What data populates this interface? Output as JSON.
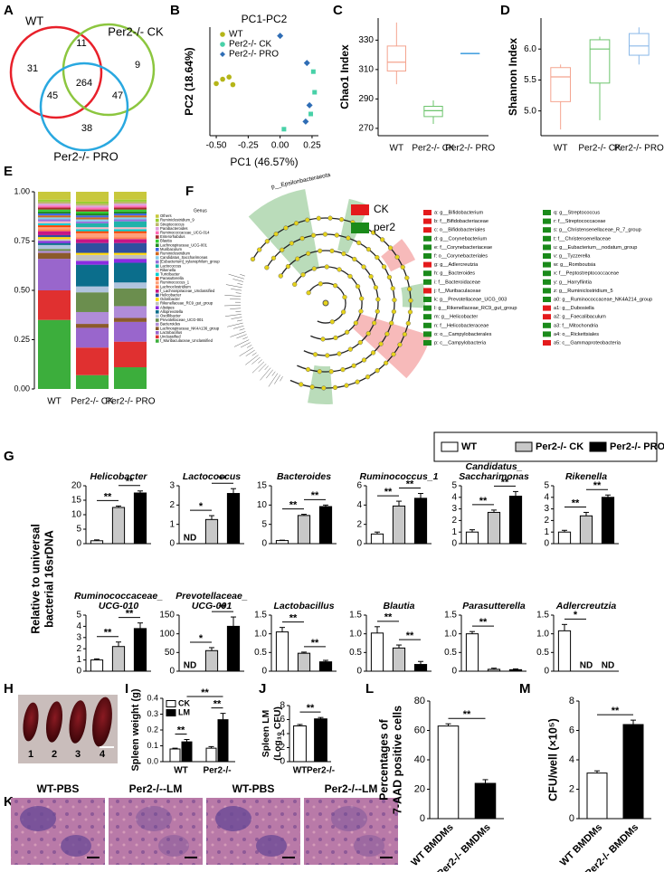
{
  "panel_letters": [
    "A",
    "B",
    "C",
    "D",
    "E",
    "F",
    "G",
    "H",
    "I",
    "J",
    "K",
    "L",
    "M"
  ],
  "venn": {
    "labels": [
      {
        "text": "WT",
        "color": "#e8202a"
      },
      {
        "text": "Per2-/- CK",
        "color": "#8cc63f"
      },
      {
        "text": "Per2-/- PRO",
        "color": "#29a8e0"
      }
    ],
    "counts": [
      31,
      11,
      9,
      45,
      264,
      47,
      38
    ]
  },
  "pca": {
    "title": "PC1-PC2",
    "xlabel": "PC1 (46.57%)",
    "ylabel": "PC2 (18.64%)",
    "xlim": [
      -0.55,
      0.3
    ],
    "ylim": [
      -0.5,
      0.5
    ],
    "xticks": [
      {
        "value": -0.5,
        "label": "-0.50"
      },
      {
        "value": -0.25,
        "label": "-0.25"
      },
      {
        "value": 0,
        "label": "0.00"
      },
      {
        "value": 0.25,
        "label": "0.25"
      }
    ],
    "series": [
      {
        "name": "WT",
        "color": "#b5b518",
        "x": [
          -0.5,
          -0.45,
          -0.4,
          -0.37
        ],
        "y": [
          -0.02,
          0.02,
          0.04,
          -0.03
        ]
      },
      {
        "name": "Per2-/- CK",
        "color": "#48d1a8",
        "x": [
          0.03,
          0.26,
          0.27,
          0.24
        ],
        "y": [
          -0.44,
          0.09,
          -0.1,
          -0.3
        ]
      },
      {
        "name": "Per2-/- PRO",
        "color": "#2f6db5",
        "x": [
          0,
          0.21,
          0.23,
          0.2
        ],
        "y": [
          0.42,
          0.17,
          -0.22,
          -0.37
        ]
      }
    ]
  },
  "chao1": {
    "ylabel": "Chao1 Index",
    "categories": [
      "WT",
      "Per2-/- CK",
      "Per2-/- PRO"
    ],
    "colors": [
      "#f4a48f",
      "#6cc46c",
      "#4aa3e0"
    ],
    "ylim": [
      265,
      345
    ],
    "yticks": [
      270,
      290,
      310,
      330
    ],
    "boxes": [
      {
        "min": 300,
        "q1": 309,
        "median": 315,
        "q3": 326,
        "max": 342
      },
      {
        "min": 273,
        "q1": 278,
        "median": 282,
        "q3": 285,
        "max": 289
      },
      {
        "min": 321,
        "q1": 321,
        "median": 321,
        "q3": 321,
        "max": 321
      }
    ]
  },
  "shannon": {
    "ylabel": "Shannon Index",
    "categories": [
      "WT",
      "Per2-/- CK",
      "Per2-/- PRO"
    ],
    "colors": [
      "#f4a48f",
      "#6cc46c",
      "#8ab8e8"
    ],
    "ylim": [
      4.6,
      6.5
    ],
    "yticks": [
      {
        "value": 5,
        "label": "5.0"
      },
      5.5,
      {
        "value": 6,
        "label": "6.0"
      }
    ],
    "boxes": [
      {
        "min": 4.7,
        "q1": 5.15,
        "median": 5.55,
        "q3": 5.7,
        "max": 5.75
      },
      {
        "min": 4.85,
        "q1": 5.45,
        "median": 6,
        "q3": 6.15,
        "max": 6.2
      },
      {
        "min": 5.75,
        "q1": 5.9,
        "median": 6.05,
        "q3": 6.25,
        "max": 6.35
      }
    ]
  },
  "composition": {
    "legend_title": "Genus",
    "categories": [
      "WT",
      "Per2-/- CK",
      "Per2-/- PRO"
    ],
    "ylim": [
      0,
      1
    ],
    "yticks": [
      {
        "value": 0,
        "label": "0.00"
      },
      {
        "value": 0.25,
        "label": "0.25"
      },
      {
        "value": 0.5,
        "label": "0.50"
      },
      {
        "value": 0.75,
        "label": "0.75"
      },
      {
        "value": 1,
        "label": "1.00"
      }
    ],
    "series": [
      {
        "name": "Others",
        "color": "#c8c83c",
        "values": [
          0.04,
          0.05,
          0.04
        ]
      },
      {
        "name": "Ruminiclostridium_9",
        "color": "#9acd32",
        "values": [
          0.01,
          0.01,
          0.01
        ]
      },
      {
        "name": "Streptococcus",
        "color": "#bdb76b",
        "values": [
          0.01,
          0.01,
          0.01
        ]
      },
      {
        "name": "Parabacteroides",
        "color": "#dda0dd",
        "values": [
          0.01,
          0.01,
          0.01
        ]
      },
      {
        "name": "Ruminococcaceae_UCG-014",
        "color": "#ff69b4",
        "values": [
          0.01,
          0.01,
          0.01
        ]
      },
      {
        "name": "Enterorhabdus",
        "color": "#a52a2a",
        "values": [
          0.01,
          0.01,
          0.01
        ]
      },
      {
        "name": "Blautia",
        "color": "#32cd32",
        "values": [
          0.01,
          0.01,
          0.01
        ]
      },
      {
        "name": "Lachnospiraceae_UCG-001",
        "color": "#228b22",
        "values": [
          0.01,
          0.01,
          0.01
        ]
      },
      {
        "name": "Muribaculum",
        "color": "#4169e1",
        "values": [
          0.01,
          0.01,
          0.01
        ]
      },
      {
        "name": "Ruminiclostridium",
        "color": "#d2691e",
        "values": [
          0.01,
          0.01,
          0.01
        ]
      },
      {
        "name": "Candidatus_Saccharimonas",
        "color": "#87ceeb",
        "values": [
          0.01,
          0.01,
          0.01
        ]
      },
      {
        "name": "[Eubacterium]_xylanophilum_group",
        "color": "#9370db",
        "values": [
          0.01,
          0.01,
          0.01
        ]
      },
      {
        "name": "Lactococcus",
        "color": "#20b2aa",
        "values": [
          0,
          0.02,
          0.03
        ]
      },
      {
        "name": "Rikenella",
        "color": "#ffb6c1",
        "values": [
          0.01,
          0.01,
          0.01
        ]
      },
      {
        "name": "Turicibacter",
        "color": "#00ced1",
        "values": [
          0.01,
          0.01,
          0.01
        ]
      },
      {
        "name": "Parasutterella",
        "color": "#ff4500",
        "values": [
          0.01,
          0.01,
          0.01
        ]
      },
      {
        "name": "Ruminococcus_1",
        "color": "#ffa07a",
        "values": [
          0.01,
          0.02,
          0.02
        ]
      },
      {
        "name": "Lachnoclostridium",
        "color": "#ff7f50",
        "values": [
          0.01,
          0.01,
          0.01
        ]
      },
      {
        "name": "f_Lachnospiraceae_Unclassified",
        "color": "#c71585",
        "values": [
          0.02,
          0.02,
          0.02
        ]
      },
      {
        "name": "Helicobacter",
        "color": "#2f4f9f",
        "values": [
          0.01,
          0.05,
          0.05
        ]
      },
      {
        "name": "Odoribacter",
        "color": "#ffd700",
        "values": [
          0.01,
          0.01,
          0.01
        ]
      },
      {
        "name": "Rikenellaceae_RC9_gut_group",
        "color": "#c0c0c0",
        "values": [
          0.01,
          0.03,
          0.02
        ]
      },
      {
        "name": "Alistipes",
        "color": "#8a2be2",
        "values": [
          0.01,
          0.02,
          0.02
        ]
      },
      {
        "name": "Alloprevotella",
        "color": "#0b6e8c",
        "values": [
          0.01,
          0.11,
          0.1
        ]
      },
      {
        "name": "Oscillibacter",
        "color": "#b0c4de",
        "values": [
          0.02,
          0.03,
          0.03
        ]
      },
      {
        "name": "Prevotellaceae_UCG-001",
        "color": "#6b8e4e",
        "values": [
          0.01,
          0.1,
          0.09
        ]
      },
      {
        "name": "Bacteroides",
        "color": "#b08cd8",
        "values": [
          0.01,
          0.06,
          0.06
        ]
      },
      {
        "name": "Lachnospiraceae_NK4A136_group",
        "color": "#8b5a2b",
        "values": [
          0.03,
          0.02,
          0.02
        ]
      },
      {
        "name": "Lactobacillus",
        "color": "#9966cc",
        "values": [
          0.16,
          0.1,
          0.1
        ]
      },
      {
        "name": "Unclassified",
        "color": "#e03030",
        "values": [
          0.15,
          0.14,
          0.13
        ]
      },
      {
        "name": "f_Muribaculaceae_Unclassified",
        "color": "#3cae3c",
        "values": [
          0.35,
          0.07,
          0.11
        ]
      }
    ]
  },
  "lefse": {
    "clade_label": "p__Epsilonbacteraeota",
    "groups": [
      {
        "name": "CK",
        "color": "#e41a1c"
      },
      {
        "name": "per2",
        "color": "#1a8a1a"
      }
    ],
    "items": [
      {
        "text": "a: g__Bifidobacterium",
        "group": "CK"
      },
      {
        "text": "b: f__Bifidobacteriaceae",
        "group": "CK"
      },
      {
        "text": "c: o__Bifidobacteriales",
        "group": "CK"
      },
      {
        "text": "d: g__Corynebacterium",
        "group": "per2"
      },
      {
        "text": "e: f__Corynebacteriaceae",
        "group": "per2"
      },
      {
        "text": "f: o__Corynebacteriales",
        "group": "per2"
      },
      {
        "text": "g: g__Adlercreutzia",
        "group": "CK"
      },
      {
        "text": "h: g__Bacteroides",
        "group": "per2"
      },
      {
        "text": "i: f__Bacteroidaceae",
        "group": "per2"
      },
      {
        "text": "j: f__Muribaculaceae",
        "group": "CK"
      },
      {
        "text": "k: g__Prevotellaceae_UCG_003",
        "group": "per2"
      },
      {
        "text": "l: g__Rikenellaceae_RC9_gut_group",
        "group": "per2"
      },
      {
        "text": "m: g__Helicobacter",
        "group": "per2"
      },
      {
        "text": "n: f__Helicobacteraceae",
        "group": "per2"
      },
      {
        "text": "o: o__Campylobacterales",
        "group": "per2"
      },
      {
        "text": "p: c__Campylobacteria",
        "group": "per2"
      },
      {
        "text": "q: g__Streptococcus",
        "group": "per2"
      },
      {
        "text": "r: f__Streptococcaceae",
        "group": "per2"
      },
      {
        "text": "s: g__Christensenellaceae_R_7_group",
        "group": "per2"
      },
      {
        "text": "t: f__Christensenellaceae",
        "group": "per2"
      },
      {
        "text": "u: g__Eubacterium__nodatum_group",
        "group": "per2"
      },
      {
        "text": "v: g__Tyzzerella",
        "group": "per2"
      },
      {
        "text": "w: g__Romboutsia",
        "group": "per2"
      },
      {
        "text": "x: f__Peptostreptococcaceae",
        "group": "per2"
      },
      {
        "text": "y: g__Harryflintia",
        "group": "per2"
      },
      {
        "text": "z: g__Ruminiclostridium_5",
        "group": "per2"
      },
      {
        "text": "a0: g__Ruminococcaceae_NK4A214_group",
        "group": "per2"
      },
      {
        "text": "a1: g__Dubosiella",
        "group": "CK"
      },
      {
        "text": "a2: g__Faecalibaculum",
        "group": "CK"
      },
      {
        "text": "a3: f__Mitochondria",
        "group": "per2"
      },
      {
        "text": "a4: o__Rickettsiales",
        "group": "per2"
      },
      {
        "text": "a5: c__Gammaproteobacteria",
        "group": "CK"
      }
    ]
  },
  "qpcr": {
    "ylabel": [
      "Relative to universal",
      "bacterial 16srDNA"
    ],
    "legend": [
      {
        "name": "WT",
        "color": "#ffffff"
      },
      {
        "name": "Per2-/- CK",
        "color": "#c8c8c8"
      },
      {
        "name": "Per2-/- PRO",
        "color": "#000000"
      }
    ],
    "charts": [
      {
        "title": [
          "Helicobacter"
        ],
        "values": [
          1,
          12.5,
          17.5
        ],
        "errors": [
          0.3,
          0.5,
          0.7
        ],
        "ylim": [
          0,
          20
        ],
        "yticks": [
          0,
          5,
          10,
          15,
          20
        ],
        "sig": [
          "**",
          "**"
        ]
      },
      {
        "title": [
          "Lactococcus"
        ],
        "values": [
          null,
          1.25,
          2.6
        ],
        "value_labels": [
          "ND",
          null,
          null
        ],
        "errors": [
          null,
          0.2,
          0.25
        ],
        "ylim": [
          0,
          3
        ],
        "yticks": [
          0,
          1,
          2,
          3
        ],
        "sig": [
          "*",
          "**"
        ]
      },
      {
        "title": [
          "Bacteroides"
        ],
        "values": [
          0.8,
          7.3,
          9.6
        ],
        "errors": [
          0.1,
          0.3,
          0.4
        ],
        "ylim": [
          0,
          15
        ],
        "yticks": [
          0,
          5,
          10,
          15
        ],
        "sig": [
          "**",
          "**"
        ]
      },
      {
        "title": [
          "Ruminococcus_1"
        ],
        "values": [
          1,
          3.9,
          4.7
        ],
        "errors": [
          0.2,
          0.5,
          0.5
        ],
        "ylim": [
          0,
          6
        ],
        "yticks": [
          0,
          2,
          4,
          6
        ],
        "sig": [
          "**",
          "**"
        ]
      },
      {
        "title": [
          "Candidatus_",
          "Saccharimonas"
        ],
        "values": [
          1,
          2.7,
          4.1
        ],
        "errors": [
          0.2,
          0.2,
          0.4
        ],
        "ylim": [
          0,
          5
        ],
        "yticks": [
          0,
          1,
          2,
          3,
          4,
          5
        ],
        "sig": [
          "**",
          "**"
        ]
      },
      {
        "title": [
          "Rikenella"
        ],
        "values": [
          1,
          2.4,
          4
        ],
        "errors": [
          0.15,
          0.3,
          0.2
        ],
        "ylim": [
          0,
          5
        ],
        "yticks": [
          0,
          1,
          2,
          3,
          4,
          5
        ],
        "sig": [
          "**",
          "**"
        ]
      },
      {
        "title": [
          "Ruminococcaceae_",
          "UCG-010"
        ],
        "values": [
          1,
          2.2,
          3.8
        ],
        "errors": [
          0.1,
          0.4,
          0.5
        ],
        "ylim": [
          0,
          5
        ],
        "yticks": [
          0,
          1,
          2,
          3,
          4,
          5
        ],
        "sig": [
          "**",
          "**"
        ]
      },
      {
        "title": [
          "Prevotellaceae_",
          "UCG-001"
        ],
        "values": [
          null,
          55,
          120
        ],
        "value_labels": [
          "ND",
          null,
          null
        ],
        "errors": [
          null,
          8,
          25
        ],
        "ylim": [
          0,
          150
        ],
        "yticks": [
          0,
          50,
          100,
          150
        ],
        "sig": [
          "*",
          "**"
        ]
      },
      {
        "title": [
          "Lactobacillus"
        ],
        "values": [
          1.05,
          0.48,
          0.25
        ],
        "errors": [
          0.12,
          0.03,
          0.04
        ],
        "ylim": [
          0,
          1.5
        ],
        "yticks": [
          0,
          0.5,
          {
            "value": 1,
            "label": "1.0"
          },
          1.5
        ],
        "sig": [
          "**",
          "**"
        ]
      },
      {
        "title": [
          "Blautia"
        ],
        "values": [
          1.02,
          0.62,
          0.18
        ],
        "errors": [
          0.17,
          0.08,
          0.08
        ],
        "ylim": [
          0,
          1.5
        ],
        "yticks": [
          0,
          0.5,
          {
            "value": 1,
            "label": "1.0"
          },
          1.5
        ],
        "sig": [
          "**",
          "**"
        ]
      },
      {
        "title": [
          "Parasutterella"
        ],
        "values": [
          1,
          0.05,
          0.04
        ],
        "errors": [
          0.06,
          0.03,
          0.02
        ],
        "ylim": [
          0,
          1.5
        ],
        "yticks": [
          0,
          0.5,
          {
            "value": 1,
            "label": "1.0"
          },
          1.5
        ],
        "sig": [
          "**",
          null
        ]
      },
      {
        "title": [
          "Adlercreutzia"
        ],
        "values": [
          1.08,
          null,
          null
        ],
        "value_labels": [
          null,
          "ND",
          "ND"
        ],
        "errors": [
          0.17,
          null,
          null
        ],
        "ylim": [
          0,
          1.5
        ],
        "yticks": [
          0,
          0.5,
          {
            "value": 1,
            "label": "1.0"
          },
          1.5
        ],
        "sig": [
          "*",
          null
        ]
      }
    ]
  },
  "spleen_photo": {
    "labels": [
      1,
      2,
      3,
      4
    ]
  },
  "spleen_weight": {
    "ylabel": "Spleen weight (g)",
    "categories": [
      "WT",
      "Per2-/-"
    ],
    "ylim": [
      0,
      0.4
    ],
    "yticks": [
      {
        "value": 0,
        "label": "0.0"
      },
      0.1,
      0.2,
      0.3,
      0.4
    ],
    "series": [
      {
        "name": "CK",
        "color": "#ffffff",
        "values": [
          0.08,
          0.085
        ],
        "errors": [
          0.005,
          0.01
        ]
      },
      {
        "name": "LM",
        "color": "#000000",
        "values": [
          0.125,
          0.265
        ],
        "errors": [
          0.015,
          0.04
        ]
      }
    ],
    "sig": [
      "**",
      "**",
      "**"
    ]
  },
  "spleen_lm": {
    "ylabel": [
      "Spleen LM",
      "(Log₁₀ CFU)"
    ],
    "categories": [
      "WT",
      "Per2-/-"
    ],
    "colors": [
      "#ffffff",
      "#000000"
    ],
    "values": [
      5.1,
      6.1
    ],
    "errors": [
      0.2,
      0.2
    ],
    "ylim": [
      0,
      8
    ],
    "yticks": [
      0,
      2,
      4,
      6,
      8
    ],
    "sig": [
      "**"
    ]
  },
  "histology": {
    "titles": [
      "WT-PBS",
      "Per2-/--LM",
      "WT-PBS",
      "Per2-/--LM"
    ]
  },
  "aad": {
    "ylabel": [
      "Percentages of",
      "7-AAD positive cells"
    ],
    "categories": [
      "WT BMDMs",
      "Per2-/- BMDMs"
    ],
    "colors": [
      "#ffffff",
      "#000000"
    ],
    "values": [
      63,
      24
    ],
    "errors": [
      1.5,
      2.5
    ],
    "ylim": [
      0,
      80
    ],
    "yticks": [
      0,
      20,
      40,
      60,
      80
    ],
    "sig": [
      "**"
    ]
  },
  "cfu": {
    "ylabel": [
      "CFU/well (×10⁵)"
    ],
    "categories": [
      "WT BMDMs",
      "Per2-/- BMDMs"
    ],
    "colors": [
      "#ffffff",
      "#000000"
    ],
    "values": [
      3.1,
      6.4
    ],
    "errors": [
      0.15,
      0.3
    ],
    "ylim": [
      0,
      8
    ],
    "yticks": [
      0,
      2,
      4,
      6,
      8
    ],
    "sig": [
      "**"
    ]
  }
}
